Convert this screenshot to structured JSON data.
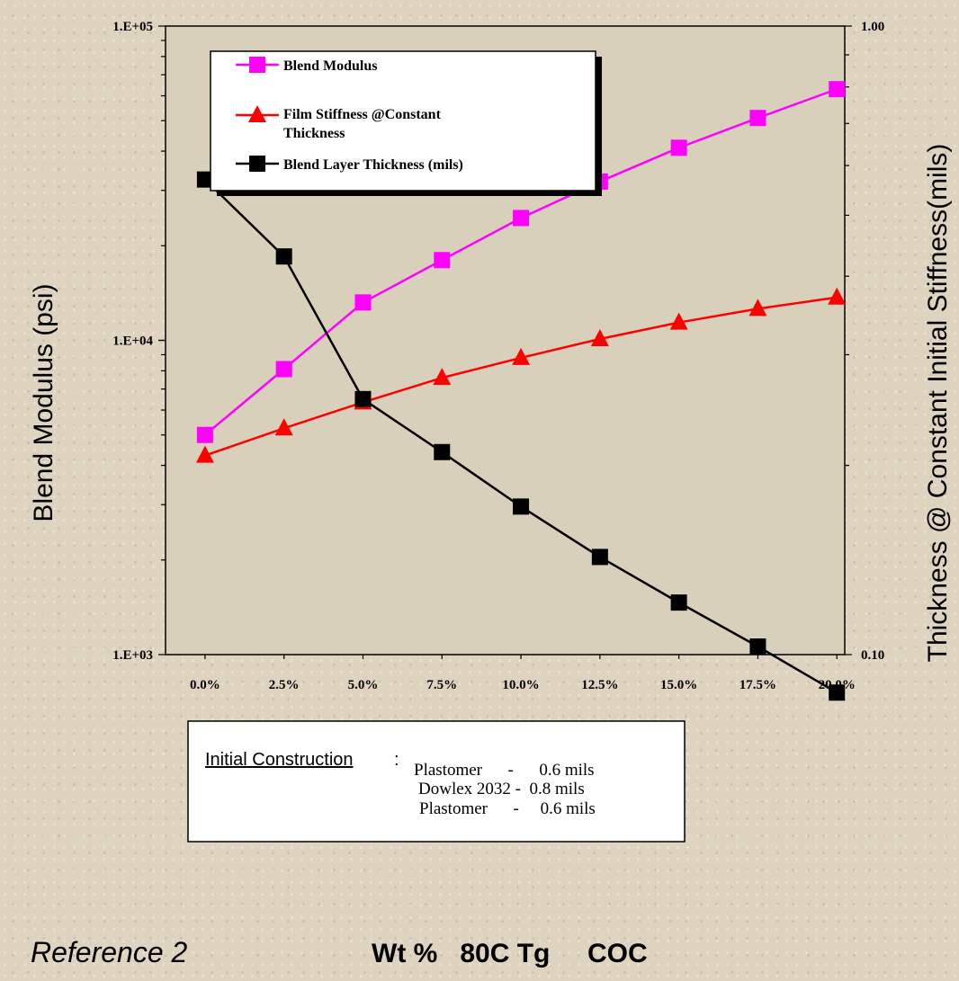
{
  "chart_data": {
    "type": "line",
    "categories": [
      "0.0%",
      "2.5%",
      "5.0%",
      "7.5%",
      "10.0%",
      "12.5%",
      "15.0%",
      "17.5%",
      "20.0%"
    ],
    "ylabel": "Blend Modulus (psi)",
    "y2label": "Thickness @ Constant Initial Stiffness(mils)",
    "xlabel": "Wt %   80C Tg     COC",
    "ylim": [
      1000,
      100000
    ],
    "y_scale": "log",
    "y_ticks": [
      "1.E+03",
      "1.E+04",
      "1.E+05"
    ],
    "y2lim": [
      0.1,
      1.0
    ],
    "y2_scale": "log",
    "y2_ticks": [
      "0.10",
      "1.00"
    ],
    "series": [
      {
        "name": "Blend  Modulus",
        "axis": "left",
        "color": "#ff00ff",
        "marker": "square",
        "values": [
          5000,
          8100,
          13200,
          18000,
          24500,
          32000,
          41000,
          51000,
          63000
        ]
      },
      {
        "name": "Film Stiffness @Constant Thickness",
        "axis": "left",
        "color": "#ff0000",
        "marker": "triangle",
        "values": [
          4300,
          5250,
          6350,
          7600,
          8800,
          10100,
          11400,
          12600,
          13700
        ]
      },
      {
        "name": "Blend Layer Thickness (mils)",
        "axis": "right",
        "color": "#000000",
        "marker": "square",
        "values": [
          0.57,
          0.43,
          0.255,
          0.21,
          0.172,
          0.143,
          0.121,
          0.103,
          0.087
        ]
      }
    ],
    "annotation": {
      "heading": "Initial Construction",
      "colon": ":",
      "lines": [
        "Plastomer      -      0.6 mils",
        "Dowlex 2032 -  0.8 mils",
        "Plastomer      -     0.6 mils"
      ]
    },
    "reference": "Reference 2"
  }
}
